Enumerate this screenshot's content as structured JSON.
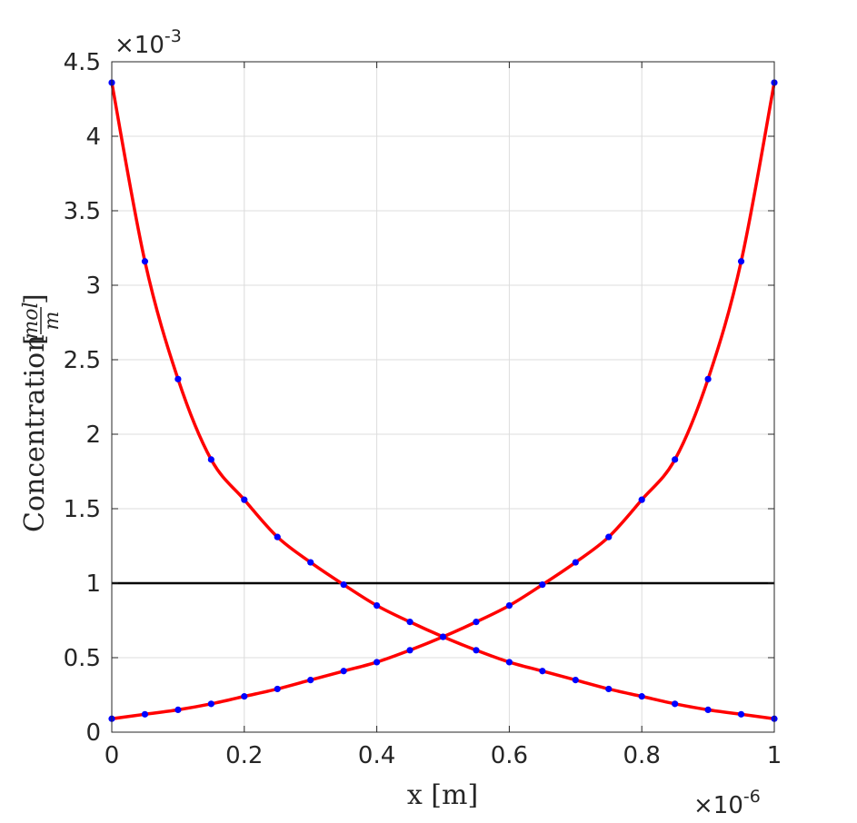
{
  "chart_data": {
    "type": "line",
    "xlabel": "x [m]",
    "ylabel": "Concentration",
    "ylabel_unit": {
      "numerator": "mol",
      "denominator": "m"
    },
    "x_exponent": {
      "base": "×10",
      "power": "-6"
    },
    "y_exponent": {
      "base": "×10",
      "power": "-3"
    },
    "xlim": [
      0,
      1
    ],
    "ylim": [
      0,
      4.5
    ],
    "x_ticks": [
      "0",
      "0.2",
      "0.4",
      "0.6",
      "0.8",
      "1"
    ],
    "x_tick_values": [
      0,
      0.2,
      0.4,
      0.6,
      0.8,
      1
    ],
    "y_ticks": [
      "0",
      "0.5",
      "1",
      "1.5",
      "2",
      "2.5",
      "3",
      "3.5",
      "4",
      "4.5"
    ],
    "y_tick_values": [
      0,
      0.5,
      1,
      1.5,
      2,
      2.5,
      3,
      3.5,
      4,
      4.5
    ],
    "grid": true,
    "colors": {
      "line": "#ff0000",
      "markers": "#0000ff",
      "reference": "#000000"
    },
    "series": [
      {
        "kind": "line+markers",
        "x": [
          0,
          0.05,
          0.1,
          0.15,
          0.2,
          0.25,
          0.3,
          0.35,
          0.4,
          0.45,
          0.5,
          0.55,
          0.6,
          0.65,
          0.7,
          0.75,
          0.8,
          0.85,
          0.9,
          0.95,
          1
        ],
        "y": [
          4.36,
          3.16,
          2.37,
          1.83,
          1.56,
          1.31,
          1.14,
          0.99,
          0.85,
          0.74,
          0.64,
          0.55,
          0.47,
          0.41,
          0.35,
          0.29,
          0.24,
          0.19,
          0.15,
          0.12,
          0.09
        ]
      },
      {
        "kind": "line+markers",
        "x": [
          0,
          0.05,
          0.1,
          0.15,
          0.2,
          0.25,
          0.3,
          0.35,
          0.4,
          0.45,
          0.5,
          0.55,
          0.6,
          0.65,
          0.7,
          0.75,
          0.8,
          0.85,
          0.9,
          0.95,
          1
        ],
        "y": [
          0.09,
          0.12,
          0.15,
          0.19,
          0.24,
          0.29,
          0.35,
          0.41,
          0.47,
          0.55,
          0.64,
          0.74,
          0.85,
          0.99,
          1.14,
          1.31,
          1.56,
          1.83,
          2.37,
          3.16,
          4.36
        ]
      },
      {
        "kind": "line",
        "x": [
          0,
          1
        ],
        "y": [
          1,
          1
        ]
      }
    ]
  }
}
